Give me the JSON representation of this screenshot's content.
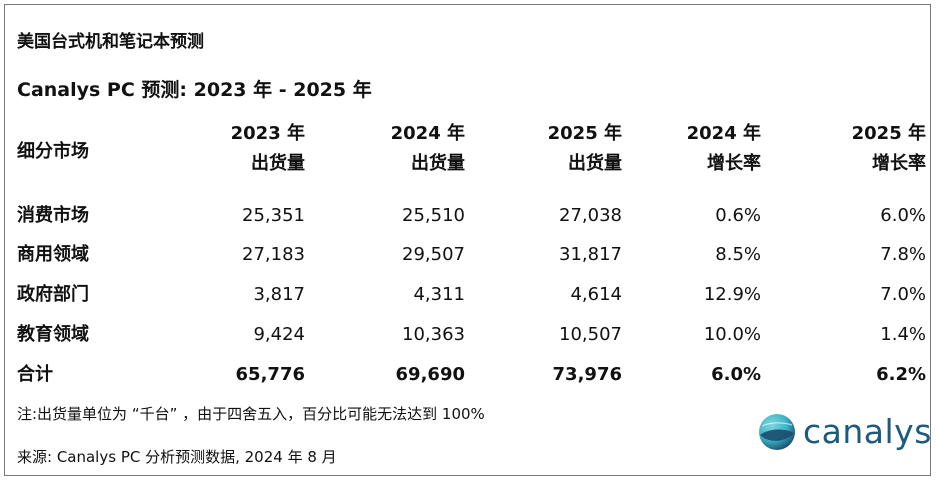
{
  "title": "美国台式机和笔记本预测",
  "subtitle": "Canalys PC 预测: 2023 年 - 2025 年",
  "table": {
    "headers": [
      {
        "line1": "细分市场",
        "line2": ""
      },
      {
        "line1": "2023 年",
        "line2": "出货量"
      },
      {
        "line1": "2024 年",
        "line2": "出货量"
      },
      {
        "line1": "2025 年",
        "line2": "出货量"
      },
      {
        "line1": "2024 年",
        "line2": "增长率"
      },
      {
        "line1": "2025 年",
        "line2": "增长率"
      }
    ],
    "rows": [
      {
        "segment": "消费市场",
        "s2023": "25,351",
        "s2024": "25,510",
        "s2025": "27,038",
        "g2024": "0.6%",
        "g2025": "6.0%"
      },
      {
        "segment": "商用领域",
        "s2023": "27,183",
        "s2024": "29,507",
        "s2025": "31,817",
        "g2024": "8.5%",
        "g2025": "7.8%"
      },
      {
        "segment": "政府部门",
        "s2023": "3,817",
        "s2024": "4,311",
        "s2025": "4,614",
        "g2024": "12.9%",
        "g2025": "7.0%"
      },
      {
        "segment": "教育领域",
        "s2023": "9,424",
        "s2024": "10,363",
        "s2025": "10,507",
        "g2024": "10.0%",
        "g2025": "1.4%"
      },
      {
        "segment": "合计",
        "s2023": "65,776",
        "s2024": "69,690",
        "s2025": "73,976",
        "g2024": "6.0%",
        "g2025": "6.2%"
      }
    ]
  },
  "note": "注:出货量单位为 “千台” ，由于四舍五入，百分比可能无法达到 100%",
  "source": "来源: Canalys PC 分析预测数据, 2024 年 8 月",
  "logo": {
    "text": "canalys",
    "icon": "canalys-globe-icon",
    "colors": {
      "text": "#1c5b7e",
      "globe_dark": "#1a4e6e",
      "globe_light": "#3fb4c8"
    }
  }
}
